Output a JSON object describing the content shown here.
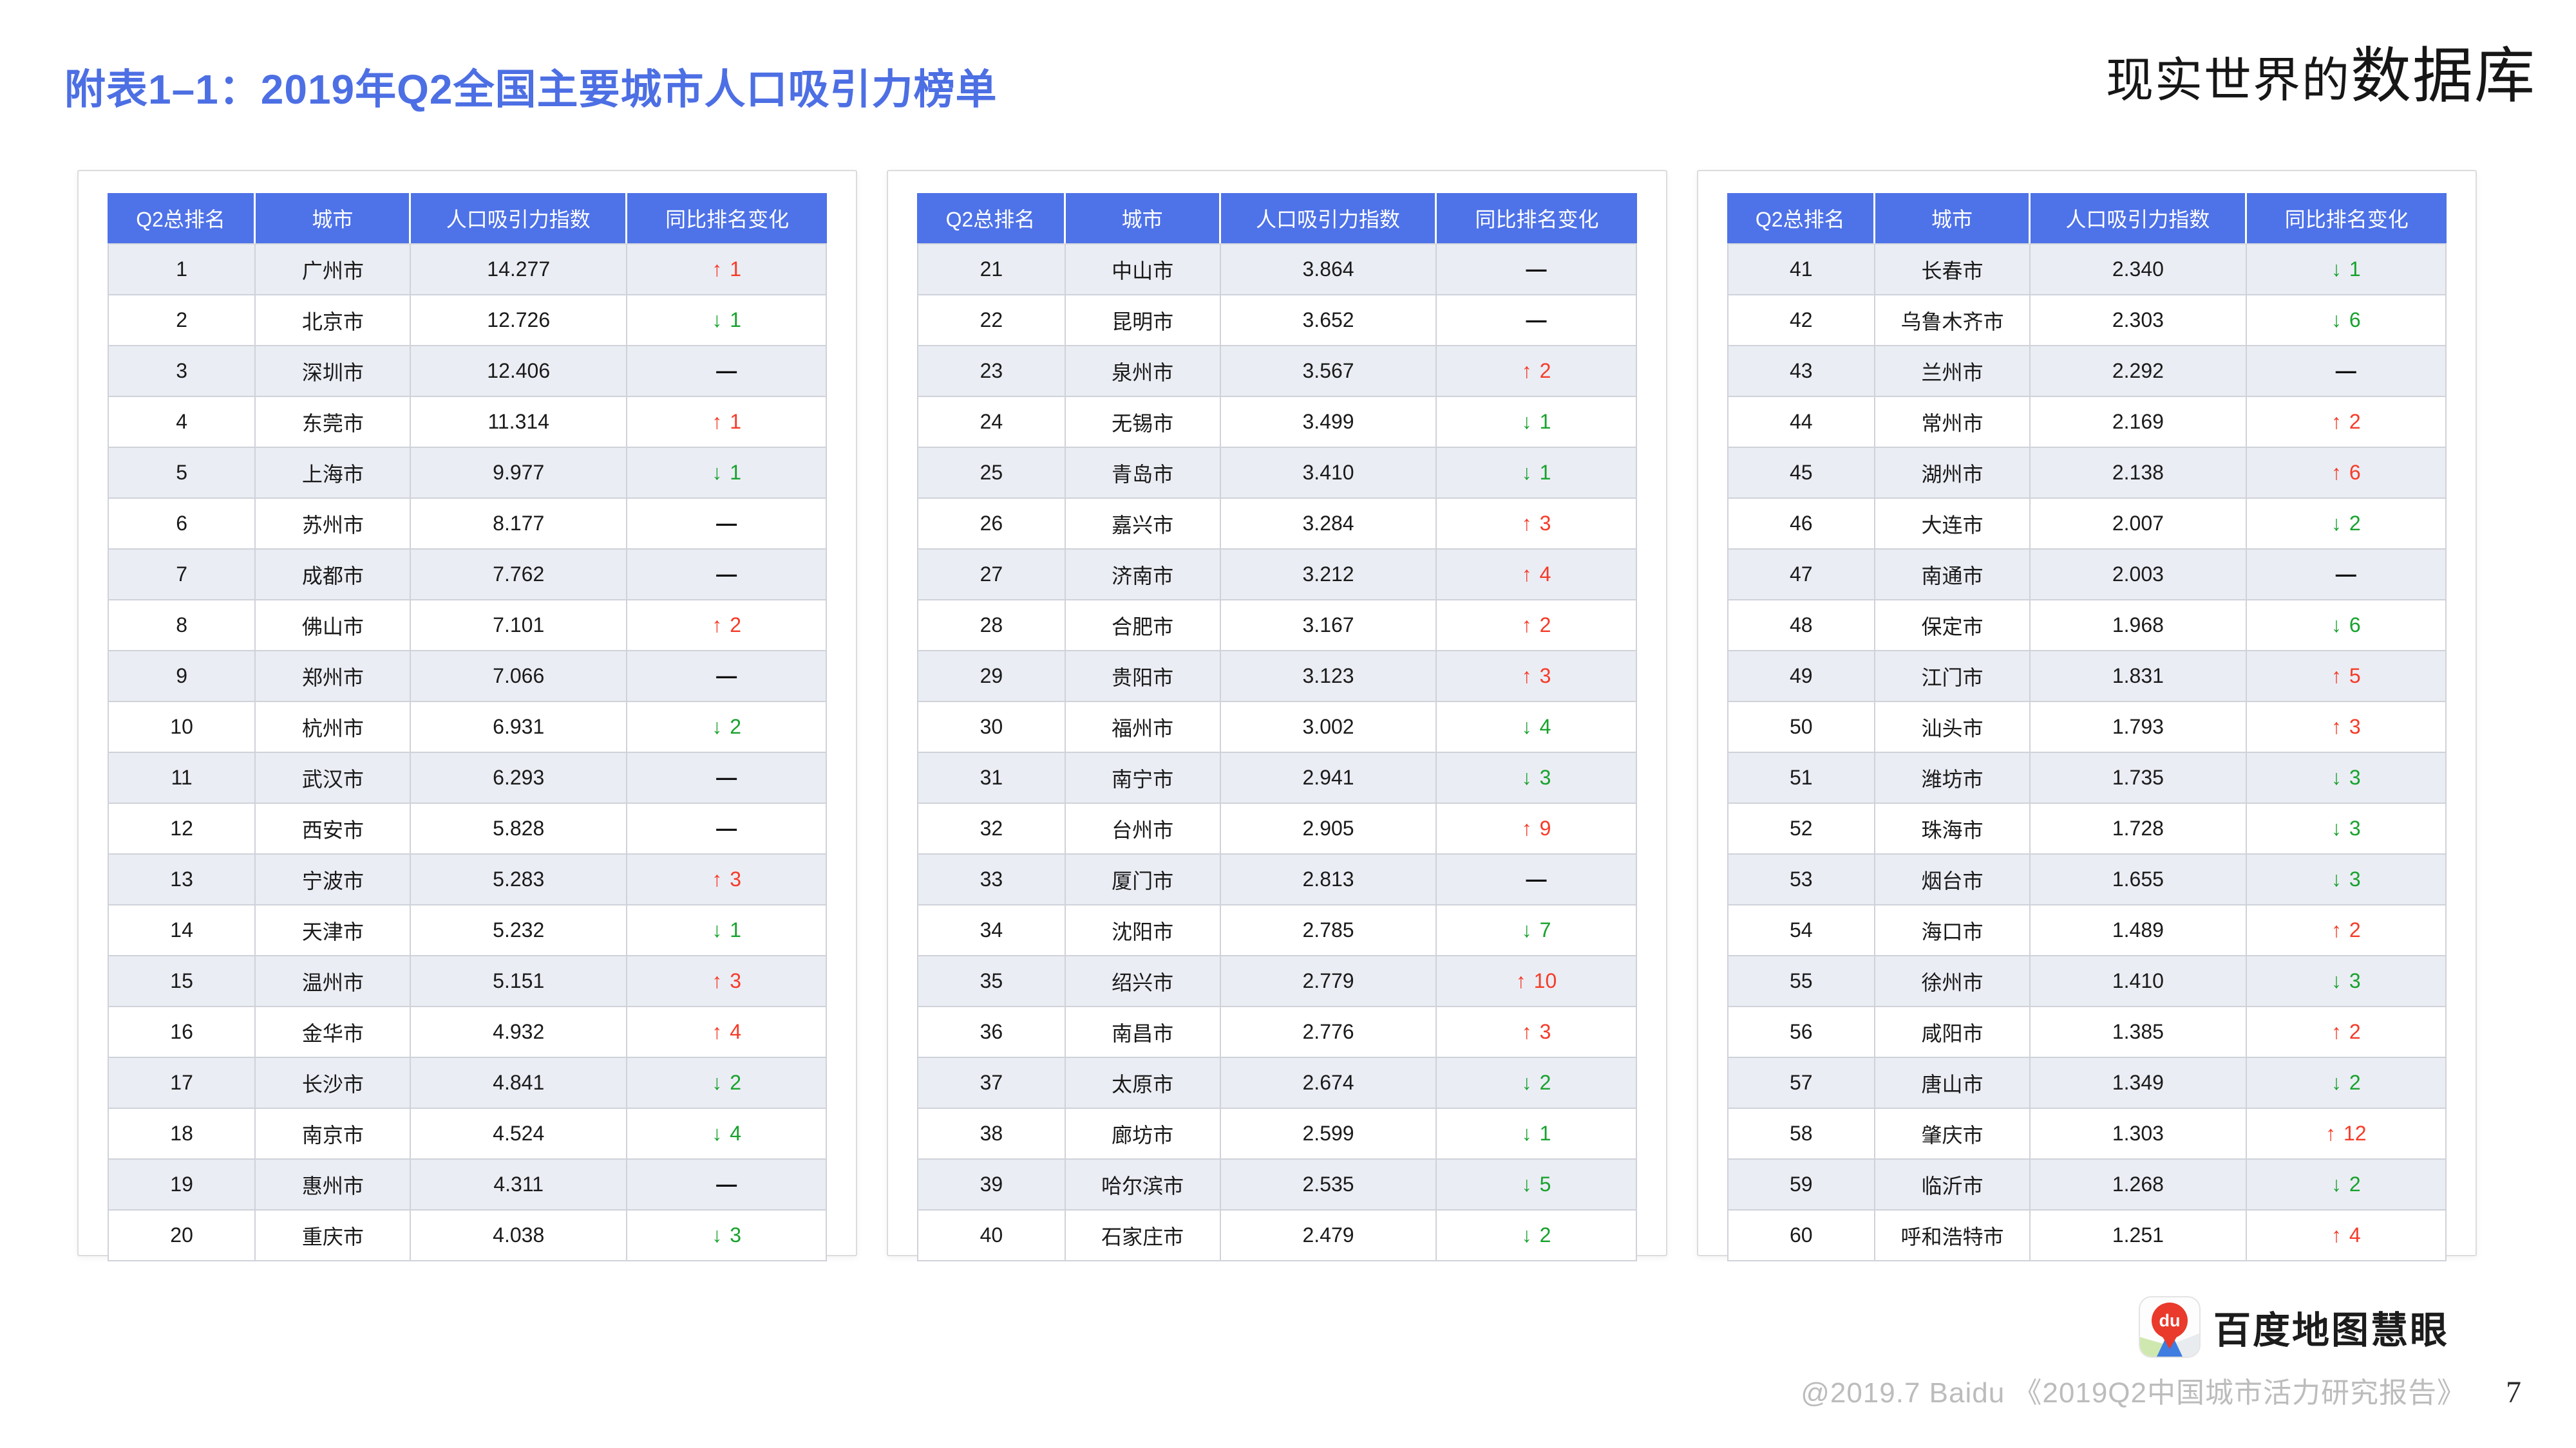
{
  "page": {
    "title": "附表1–1：2019年Q2全国主要城市人口吸引力榜单",
    "watermark_part1": "现实世界的",
    "watermark_part2": "数据库"
  },
  "colors": {
    "title_blue": "#4D6FE4",
    "header_bg": "#4E72E8",
    "row_alt_bg": "#EBEDF4",
    "up_red": "#F53B28",
    "down_green": "#17A22D"
  },
  "glyphs": {
    "up": "↑",
    "down": "↓",
    "same": "—"
  },
  "table_headers": [
    "Q2总排名",
    "城市",
    "人口吸引力指数",
    "同比排名变化"
  ],
  "tables": [
    {
      "rows": [
        {
          "rank": "1",
          "city": "广州市",
          "index": "14.277",
          "dir": "up",
          "delta": "1"
        },
        {
          "rank": "2",
          "city": "北京市",
          "index": "12.726",
          "dir": "down",
          "delta": "1"
        },
        {
          "rank": "3",
          "city": "深圳市",
          "index": "12.406",
          "dir": "same",
          "delta": ""
        },
        {
          "rank": "4",
          "city": "东莞市",
          "index": "11.314",
          "dir": "up",
          "delta": "1"
        },
        {
          "rank": "5",
          "city": "上海市",
          "index": "9.977",
          "dir": "down",
          "delta": "1"
        },
        {
          "rank": "6",
          "city": "苏州市",
          "index": "8.177",
          "dir": "same",
          "delta": ""
        },
        {
          "rank": "7",
          "city": "成都市",
          "index": "7.762",
          "dir": "same",
          "delta": ""
        },
        {
          "rank": "8",
          "city": "佛山市",
          "index": "7.101",
          "dir": "up",
          "delta": "2"
        },
        {
          "rank": "9",
          "city": "郑州市",
          "index": "7.066",
          "dir": "same",
          "delta": ""
        },
        {
          "rank": "10",
          "city": "杭州市",
          "index": "6.931",
          "dir": "down",
          "delta": "2"
        },
        {
          "rank": "11",
          "city": "武汉市",
          "index": "6.293",
          "dir": "same",
          "delta": ""
        },
        {
          "rank": "12",
          "city": "西安市",
          "index": "5.828",
          "dir": "same",
          "delta": ""
        },
        {
          "rank": "13",
          "city": "宁波市",
          "index": "5.283",
          "dir": "up",
          "delta": "3"
        },
        {
          "rank": "14",
          "city": "天津市",
          "index": "5.232",
          "dir": "down",
          "delta": "1"
        },
        {
          "rank": "15",
          "city": "温州市",
          "index": "5.151",
          "dir": "up",
          "delta": "3"
        },
        {
          "rank": "16",
          "city": "金华市",
          "index": "4.932",
          "dir": "up",
          "delta": "4"
        },
        {
          "rank": "17",
          "city": "长沙市",
          "index": "4.841",
          "dir": "down",
          "delta": "2"
        },
        {
          "rank": "18",
          "city": "南京市",
          "index": "4.524",
          "dir": "down",
          "delta": "4"
        },
        {
          "rank": "19",
          "city": "惠州市",
          "index": "4.311",
          "dir": "same",
          "delta": ""
        },
        {
          "rank": "20",
          "city": "重庆市",
          "index": "4.038",
          "dir": "down",
          "delta": "3"
        }
      ]
    },
    {
      "rows": [
        {
          "rank": "21",
          "city": "中山市",
          "index": "3.864",
          "dir": "same",
          "delta": ""
        },
        {
          "rank": "22",
          "city": "昆明市",
          "index": "3.652",
          "dir": "same",
          "delta": ""
        },
        {
          "rank": "23",
          "city": "泉州市",
          "index": "3.567",
          "dir": "up",
          "delta": "2"
        },
        {
          "rank": "24",
          "city": "无锡市",
          "index": "3.499",
          "dir": "down",
          "delta": "1"
        },
        {
          "rank": "25",
          "city": "青岛市",
          "index": "3.410",
          "dir": "down",
          "delta": "1"
        },
        {
          "rank": "26",
          "city": "嘉兴市",
          "index": "3.284",
          "dir": "up",
          "delta": "3"
        },
        {
          "rank": "27",
          "city": "济南市",
          "index": "3.212",
          "dir": "up",
          "delta": "4"
        },
        {
          "rank": "28",
          "city": "合肥市",
          "index": "3.167",
          "dir": "up",
          "delta": "2"
        },
        {
          "rank": "29",
          "city": "贵阳市",
          "index": "3.123",
          "dir": "up",
          "delta": "3"
        },
        {
          "rank": "30",
          "city": "福州市",
          "index": "3.002",
          "dir": "down",
          "delta": "4"
        },
        {
          "rank": "31",
          "city": "南宁市",
          "index": "2.941",
          "dir": "down",
          "delta": "3"
        },
        {
          "rank": "32",
          "city": "台州市",
          "index": "2.905",
          "dir": "up",
          "delta": "9"
        },
        {
          "rank": "33",
          "city": "厦门市",
          "index": "2.813",
          "dir": "same",
          "delta": ""
        },
        {
          "rank": "34",
          "city": "沈阳市",
          "index": "2.785",
          "dir": "down",
          "delta": "7"
        },
        {
          "rank": "35",
          "city": "绍兴市",
          "index": "2.779",
          "dir": "up",
          "delta": "10"
        },
        {
          "rank": "36",
          "city": "南昌市",
          "index": "2.776",
          "dir": "up",
          "delta": "3"
        },
        {
          "rank": "37",
          "city": "太原市",
          "index": "2.674",
          "dir": "down",
          "delta": "2"
        },
        {
          "rank": "38",
          "city": "廊坊市",
          "index": "2.599",
          "dir": "down",
          "delta": "1"
        },
        {
          "rank": "39",
          "city": "哈尔滨市",
          "index": "2.535",
          "dir": "down",
          "delta": "5"
        },
        {
          "rank": "40",
          "city": "石家庄市",
          "index": "2.479",
          "dir": "down",
          "delta": "2"
        }
      ]
    },
    {
      "rows": [
        {
          "rank": "41",
          "city": "长春市",
          "index": "2.340",
          "dir": "down",
          "delta": "1"
        },
        {
          "rank": "42",
          "city": "乌鲁木齐市",
          "index": "2.303",
          "dir": "down",
          "delta": "6"
        },
        {
          "rank": "43",
          "city": "兰州市",
          "index": "2.292",
          "dir": "same",
          "delta": ""
        },
        {
          "rank": "44",
          "city": "常州市",
          "index": "2.169",
          "dir": "up",
          "delta": "2"
        },
        {
          "rank": "45",
          "city": "湖州市",
          "index": "2.138",
          "dir": "up",
          "delta": "6"
        },
        {
          "rank": "46",
          "city": "大连市",
          "index": "2.007",
          "dir": "down",
          "delta": "2"
        },
        {
          "rank": "47",
          "city": "南通市",
          "index": "2.003",
          "dir": "same",
          "delta": ""
        },
        {
          "rank": "48",
          "city": "保定市",
          "index": "1.968",
          "dir": "down",
          "delta": "6"
        },
        {
          "rank": "49",
          "city": "江门市",
          "index": "1.831",
          "dir": "up",
          "delta": "5"
        },
        {
          "rank": "50",
          "city": "汕头市",
          "index": "1.793",
          "dir": "up",
          "delta": "3"
        },
        {
          "rank": "51",
          "city": "潍坊市",
          "index": "1.735",
          "dir": "down",
          "delta": "3"
        },
        {
          "rank": "52",
          "city": "珠海市",
          "index": "1.728",
          "dir": "down",
          "delta": "3"
        },
        {
          "rank": "53",
          "city": "烟台市",
          "index": "1.655",
          "dir": "down",
          "delta": "3"
        },
        {
          "rank": "54",
          "city": "海口市",
          "index": "1.489",
          "dir": "up",
          "delta": "2"
        },
        {
          "rank": "55",
          "city": "徐州市",
          "index": "1.410",
          "dir": "down",
          "delta": "3"
        },
        {
          "rank": "56",
          "city": "咸阳市",
          "index": "1.385",
          "dir": "up",
          "delta": "2"
        },
        {
          "rank": "57",
          "city": "唐山市",
          "index": "1.349",
          "dir": "down",
          "delta": "2"
        },
        {
          "rank": "58",
          "city": "肇庆市",
          "index": "1.303",
          "dir": "up",
          "delta": "12"
        },
        {
          "rank": "59",
          "city": "临沂市",
          "index": "1.268",
          "dir": "down",
          "delta": "2"
        },
        {
          "rank": "60",
          "city": "呼和浩特市",
          "index": "1.251",
          "dir": "up",
          "delta": "4"
        }
      ]
    }
  ],
  "footer": {
    "brand": "百度地图慧眼",
    "pin_label": "du",
    "copyright": "@2019.7 Baidu 《2019Q2中国城市活力研究报告》",
    "page_number": "7"
  }
}
